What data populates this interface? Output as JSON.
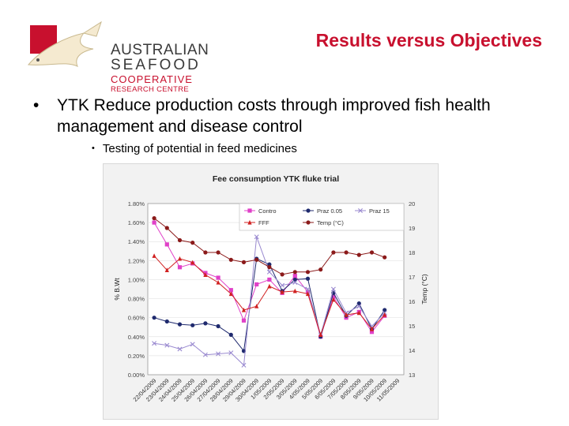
{
  "logo": {
    "line1": "AUSTRALIAN",
    "line2": "SEAFOOD",
    "line3": "COOPERATIVE",
    "line4": "RESEARCH CENTRE",
    "colors": {
      "red": "#c8102e",
      "gray": "#3a3a3a"
    }
  },
  "slide": {
    "title": "Results versus Objectives",
    "bullet1": "YTK Reduce production costs through improved fish health management and disease control",
    "bullet2": "Testing of potential in feed medicines"
  },
  "chart_data": {
    "type": "line",
    "title": "Fee consumption YTK fluke trial",
    "xlabel": "",
    "ylabel": "% B.Wt",
    "y2label": "Temp (°C)",
    "ylim": [
      0,
      1.8
    ],
    "y2lim": [
      13,
      20
    ],
    "yticks": [
      "0.00%",
      "0.20%",
      "0.40%",
      "0.60%",
      "0.80%",
      "1.00%",
      "1.20%",
      "1.40%",
      "1.60%",
      "1.80%"
    ],
    "y2ticks": [
      "13",
      "14",
      "15",
      "16",
      "17",
      "18",
      "19",
      "20"
    ],
    "categories": [
      "22/04/2009",
      "23/04/2009",
      "24/04/2009",
      "25/04/2009",
      "26/04/2009",
      "27/04/2009",
      "28/04/2009",
      "29/04/2009",
      "30/04/2009",
      "1/05/2009",
      "2/05/2009",
      "3/05/2009",
      "4/05/2009",
      "5/05/2009",
      "6/05/2009",
      "7/05/2009",
      "8/05/2009",
      "9/05/2009",
      "10/05/2009",
      "11/05/2009"
    ],
    "series": [
      {
        "name": "Contro",
        "axis": "left",
        "color": "#e040c8",
        "marker": "square",
        "values": [
          1.6,
          1.37,
          1.13,
          1.17,
          1.07,
          1.02,
          0.89,
          0.57,
          0.95,
          1.0,
          0.86,
          1.04,
          0.87,
          0.4,
          0.82,
          0.6,
          0.66,
          0.45,
          0.62,
          null
        ]
      },
      {
        "name": "Praz 0.05",
        "axis": "left",
        "color": "#1f2a6e",
        "marker": "circle",
        "values": [
          0.6,
          0.56,
          0.53,
          0.52,
          0.54,
          0.51,
          0.42,
          0.25,
          1.22,
          1.16,
          0.88,
          1.0,
          1.01,
          0.4,
          0.86,
          0.62,
          0.75,
          0.48,
          0.68,
          null
        ]
      },
      {
        "name": "Praz 15",
        "axis": "left",
        "color": "#9a8ad0",
        "marker": "x",
        "values": [
          0.33,
          0.31,
          0.27,
          0.32,
          0.21,
          0.22,
          0.23,
          0.1,
          1.45,
          1.08,
          0.94,
          0.97,
          0.9,
          0.42,
          0.9,
          0.65,
          0.72,
          0.51,
          0.65,
          null
        ]
      },
      {
        "name": "FFF",
        "axis": "left",
        "color": "#d02020",
        "marker": "triangle",
        "values": [
          1.25,
          1.1,
          1.22,
          1.18,
          1.05,
          0.97,
          0.85,
          0.68,
          0.72,
          0.93,
          0.87,
          0.88,
          0.85,
          0.42,
          0.79,
          0.63,
          0.65,
          0.48,
          0.63,
          null
        ]
      },
      {
        "name": "Temp (°C)",
        "axis": "right",
        "color": "#8b1a1a",
        "marker": "circle",
        "values": [
          19.4,
          19.0,
          18.5,
          18.4,
          18.0,
          18.0,
          17.7,
          17.6,
          17.7,
          17.4,
          17.1,
          17.2,
          17.2,
          17.3,
          18.0,
          18.0,
          17.9,
          18.0,
          17.8,
          null
        ]
      }
    ]
  }
}
